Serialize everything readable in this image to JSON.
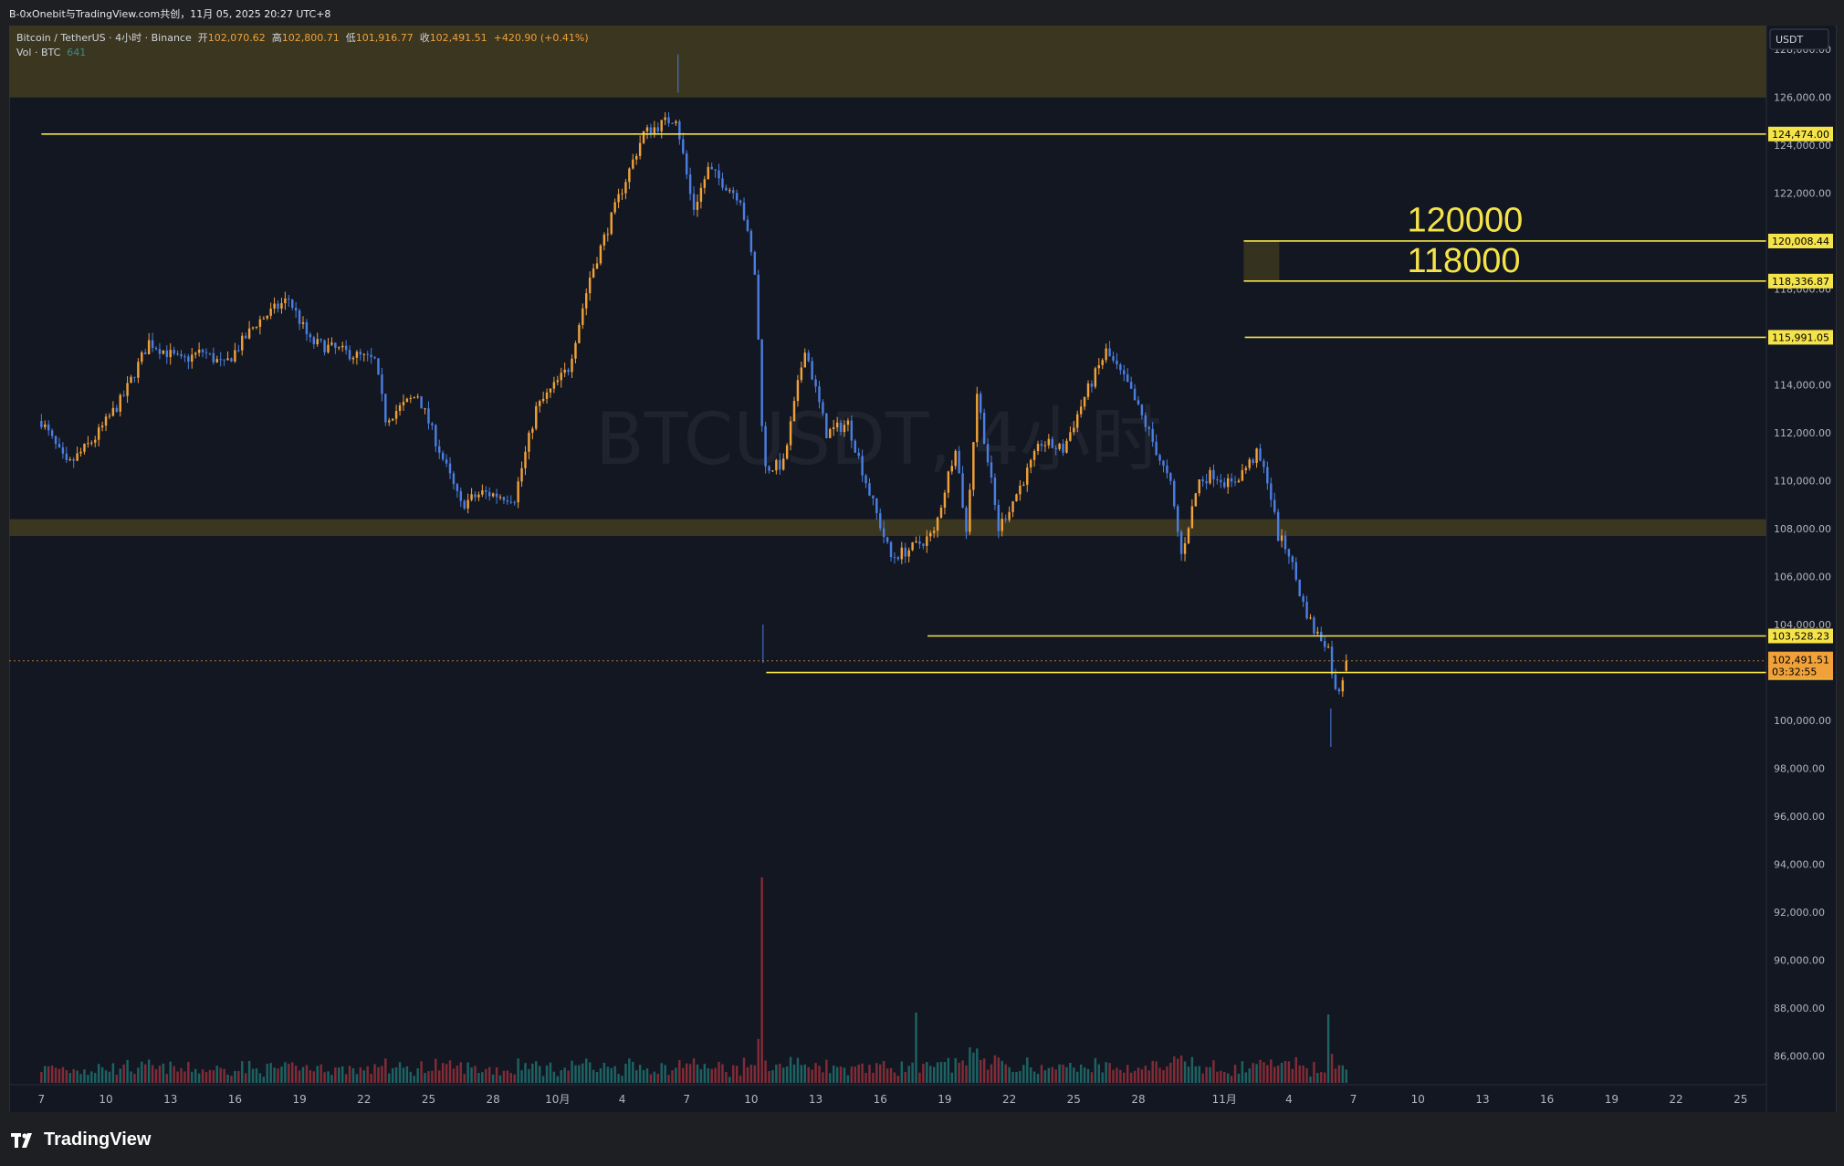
{
  "window_title": "B-0xOnebit与TradingView.com共创，11月 05, 2025 20:27 UTC+8",
  "legend": {
    "symbol": "Bitcoin / TetherUS · 4小时 · Binance",
    "open_label": "开",
    "open": "102,070.62",
    "high_label": "高",
    "high": "102,800.71",
    "low_label": "低",
    "low": "101,916.77",
    "close_label": "收",
    "close": "102,491.51",
    "change": "+420.90 (+0.41%)",
    "vol_label": "Vol · BTC",
    "vol_value": "641"
  },
  "watermark": "BTCUSDT, 4小时",
  "currency": "USDT",
  "brand": "TradingView",
  "annotations": {
    "upper": "120000",
    "lower": "118000"
  },
  "colors": {
    "background": "#131722",
    "up": "#f0a13a",
    "down": "#4a7ee0",
    "level_line": "#f5e34a",
    "zone": "#3a3620",
    "vol_up": "#1f6c6a",
    "vol_down": "#8e2f39"
  },
  "chart_data": {
    "type": "candlestick",
    "timeframe": "4小时",
    "ylim": [
      84800,
      129000
    ],
    "y_ticks": [
      86000,
      88000,
      90000,
      92000,
      94000,
      96000,
      98000,
      100000,
      102000,
      104000,
      106000,
      108000,
      110000,
      112000,
      114000,
      116000,
      118000,
      120000,
      122000,
      124000,
      126000,
      128000
    ],
    "y_tick_labels": [
      "86,000.00",
      "88,000.00",
      "90,000.00",
      "92,000.00",
      "94,000.00",
      "96,000.00",
      "98,000.00",
      "100,000.00",
      "102,000.00",
      "104,000.00",
      "106,000.00",
      "108,000.00",
      "110,000.00",
      "112,000.00",
      "114,000.00",
      "116,000.00",
      "118,000.00",
      "120,000.00",
      "122,000.00",
      "124,000.00",
      "126,000.00",
      "128,000.00"
    ],
    "x_tick_labels": [
      "7",
      "10",
      "13",
      "16",
      "19",
      "22",
      "25",
      "28",
      "10月",
      "4",
      "7",
      "10",
      "13",
      "16",
      "19",
      "22",
      "25",
      "28",
      "11月",
      "4",
      "7",
      "10",
      "13",
      "16",
      "19",
      "22",
      "25"
    ],
    "x_ticks_day_index": [
      0,
      3,
      6,
      9,
      12,
      15,
      18,
      21,
      24,
      27,
      30,
      33,
      36,
      39,
      42,
      45,
      48,
      51,
      55,
      58,
      61,
      64,
      67,
      70,
      73,
      76,
      79
    ],
    "x_axis_span_days": [
      -1.5,
      80.2
    ],
    "candles_per_day": 6,
    "anchors": [
      [
        0,
        112500
      ],
      [
        1.2,
        110600
      ],
      [
        2.5,
        111800
      ],
      [
        3.8,
        113500
      ],
      [
        5,
        115800
      ],
      [
        6.5,
        115000
      ],
      [
        7.5,
        115400
      ],
      [
        8.5,
        114800
      ],
      [
        10,
        116600
      ],
      [
        11.5,
        117600
      ],
      [
        12.5,
        115800
      ],
      [
        14,
        115400
      ],
      [
        15.5,
        115000
      ],
      [
        16,
        112600
      ],
      [
        17.5,
        113600
      ],
      [
        18.5,
        111300
      ],
      [
        19.5,
        109000
      ],
      [
        20.5,
        109500
      ],
      [
        22,
        109300
      ],
      [
        23,
        113000
      ],
      [
        24.5,
        114700
      ],
      [
        25.5,
        118500
      ],
      [
        27,
        122200
      ],
      [
        28,
        124500
      ],
      [
        29.5,
        125200
      ],
      [
        30.3,
        121300
      ],
      [
        31,
        123000
      ],
      [
        32.5,
        121800
      ],
      [
        33.2,
        118500
      ],
      [
        33.6,
        110500
      ],
      [
        34.5,
        110700
      ],
      [
        35.5,
        115600
      ],
      [
        36.5,
        112000
      ],
      [
        37.5,
        112400
      ],
      [
        38.5,
        109500
      ],
      [
        39.5,
        106800
      ],
      [
        40.5,
        107200
      ],
      [
        41.5,
        107800
      ],
      [
        42.5,
        111500
      ],
      [
        43,
        107800
      ],
      [
        43.5,
        113700
      ],
      [
        44.5,
        108000
      ],
      [
        45.3,
        109400
      ],
      [
        46.5,
        111600
      ],
      [
        47.5,
        111300
      ],
      [
        48.5,
        113500
      ],
      [
        49.5,
        115400
      ],
      [
        50.5,
        114000
      ],
      [
        51.5,
        112000
      ],
      [
        52.5,
        109800
      ],
      [
        53,
        106900
      ],
      [
        53.8,
        110000
      ],
      [
        54.5,
        110300
      ],
      [
        55.3,
        109800
      ],
      [
        56.5,
        111100
      ],
      [
        57,
        110100
      ],
      [
        57.5,
        107700
      ],
      [
        58,
        107000
      ],
      [
        58.6,
        105000
      ],
      [
        59.2,
        103700
      ],
      [
        59.8,
        103200
      ],
      [
        60.2,
        101000
      ],
      [
        60.6,
        102100
      ],
      [
        60.83,
        102491
      ]
    ],
    "volume_spikes": [
      {
        "day": 33.5,
        "volume": 5400
      },
      {
        "day": 40.7,
        "volume": 1850
      },
      {
        "day": 59.9,
        "volume": 1800
      }
    ],
    "horizontal_levels": [
      {
        "price": 124474.0,
        "label": "124,474.00"
      },
      {
        "price": 120008.44,
        "label": "120,008.44"
      },
      {
        "price": 118336.87,
        "label": "118,336.87"
      },
      {
        "price": 115991.05,
        "label": "115,991.05"
      },
      {
        "price": 103528.23,
        "label": "103,528.23"
      },
      {
        "price": 102000.0,
        "label": "102,000.00"
      }
    ],
    "zones": [
      {
        "from": 126000,
        "to": 129000
      },
      {
        "from": 107700,
        "to": 108400
      },
      {
        "from": 118336.87,
        "to": 120008.44
      }
    ],
    "last_price": {
      "price": 102491.51,
      "label": "102,491.51",
      "countdown": "03:32:55"
    }
  }
}
